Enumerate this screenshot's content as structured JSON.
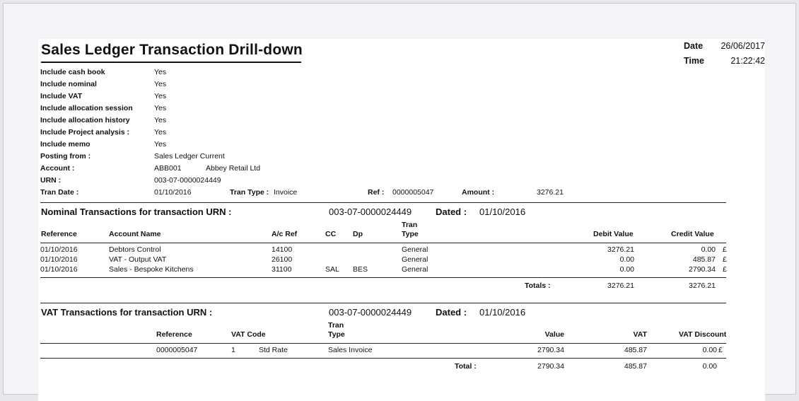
{
  "report": {
    "title": "Sales Ledger Transaction Drill-down",
    "date_label": "Date",
    "date_value": "26/06/2017",
    "time_label": "Time",
    "time_value": "21:22:42"
  },
  "filters": [
    {
      "label": "Include cash book",
      "value": "Yes"
    },
    {
      "label": "Include nominal",
      "value": "Yes"
    },
    {
      "label": "Include VAT",
      "value": "Yes"
    },
    {
      "label": "Include allocation session",
      "value": "Yes"
    },
    {
      "label": "Include allocation history",
      "value": "Yes"
    },
    {
      "label": "Include Project analysis :",
      "value": "Yes"
    },
    {
      "label": "Include memo",
      "value": "Yes"
    },
    {
      "label": "Posting from :",
      "value": "Sales Ledger Current"
    },
    {
      "label": "Account :",
      "value": "ABB001"
    },
    {
      "label": "URN :",
      "value": "003-07-0000024449"
    },
    {
      "label": "Tran Date :",
      "value": "01/10/2016"
    }
  ],
  "account_name": "Abbey Retail Ltd",
  "tran": {
    "type_label": "Tran Type :",
    "type_value": "Invoice",
    "ref_label": "Ref :",
    "ref_value": "0000005047",
    "amount_label": "Amount :",
    "amount_value": "3276.21"
  },
  "nominal": {
    "heading": "Nominal Transactions for transaction URN :",
    "urn": "003-07-0000024449",
    "dated_label": "Dated :",
    "dated_value": "01/10/2016",
    "columns": {
      "reference": "Reference",
      "account_name": "Account Name",
      "ac_ref": "A/c Ref",
      "cc": "CC",
      "dp": "Dp",
      "tran_type_1": "Tran",
      "tran_type_2": "Type",
      "debit": "Debit Value",
      "credit": "Credit Value"
    },
    "rows": [
      {
        "reference": "01/10/2016",
        "account_name": "Debtors Control",
        "ac_ref": "14100",
        "cc": "",
        "dp": "",
        "tran_type": "General",
        "debit": "3276.21",
        "credit": "0.00",
        "cur": "£"
      },
      {
        "reference": "01/10/2016",
        "account_name": "VAT - Output VAT",
        "ac_ref": "26100",
        "cc": "",
        "dp": "",
        "tran_type": "General",
        "debit": "0.00",
        "credit": "485.87",
        "cur": "£"
      },
      {
        "reference": "01/10/2016",
        "account_name": "Sales - Bespoke Kitchens",
        "ac_ref": "31100",
        "cc": "SAL",
        "dp": "BES",
        "tran_type": "General",
        "debit": "0.00",
        "credit": "2790.34",
        "cur": "£"
      }
    ],
    "totals_label": "Totals :",
    "total_debit": "3276.21",
    "total_credit": "3276.21"
  },
  "vat": {
    "heading": "VAT Transactions for transaction URN :",
    "urn": "003-07-0000024449",
    "dated_label": "Dated :",
    "dated_value": "01/10/2016",
    "columns": {
      "reference": "Reference",
      "vat_code": "VAT Code",
      "tran_type_1": "Tran",
      "tran_type_2": "Type",
      "value": "Value",
      "vat": "VAT",
      "vat_discount": "VAT Discount"
    },
    "rows": [
      {
        "reference": "0000005047",
        "code": "1",
        "code_name": "Std Rate",
        "tran_type": "Sales Invoice",
        "value": "2790.34",
        "vat": "485.87",
        "vat_discount": "0.00",
        "cur": "£"
      }
    ],
    "total_label": "Total :",
    "total_value": "2790.34",
    "total_vat": "485.87",
    "total_discount": "0.00"
  }
}
